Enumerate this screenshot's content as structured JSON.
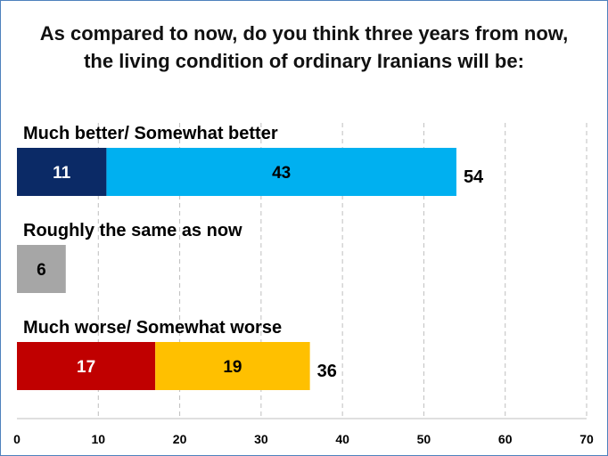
{
  "chart_data": {
    "type": "bar",
    "orientation": "horizontal",
    "stacked": true,
    "title_lines": [
      "As compared to now, do you think three years from now,",
      "the living condition of ordinary Iranians will be:"
    ],
    "categories": [
      "Much better/ Somewhat better",
      "Roughly the same as now",
      "Much worse/ Somewhat worse"
    ],
    "bars": [
      {
        "category": "Much better/ Somewhat better",
        "segments": [
          {
            "value": 11,
            "label": "11",
            "color": "#0b2a66",
            "text_color": "#ffffff"
          },
          {
            "value": 43,
            "label": "43",
            "color": "#00b0f0",
            "text_color": "#000000"
          }
        ],
        "total": "54"
      },
      {
        "category": "Roughly the same as now",
        "segments": [
          {
            "value": 6,
            "label": "6",
            "color": "#a6a6a6",
            "text_color": "#000000"
          }
        ],
        "total": ""
      },
      {
        "category": "Much worse/ Somewhat worse",
        "segments": [
          {
            "value": 17,
            "label": "17",
            "color": "#c00000",
            "text_color": "#ffffff"
          },
          {
            "value": 19,
            "label": "19",
            "color": "#ffc000",
            "text_color": "#000000"
          }
        ],
        "total": "36"
      }
    ],
    "x_ticks": [
      "0",
      "10",
      "20",
      "30",
      "40",
      "50",
      "60",
      "70"
    ],
    "xlim": [
      0,
      70
    ],
    "grid": "vertical dashed",
    "legend": "none"
  }
}
